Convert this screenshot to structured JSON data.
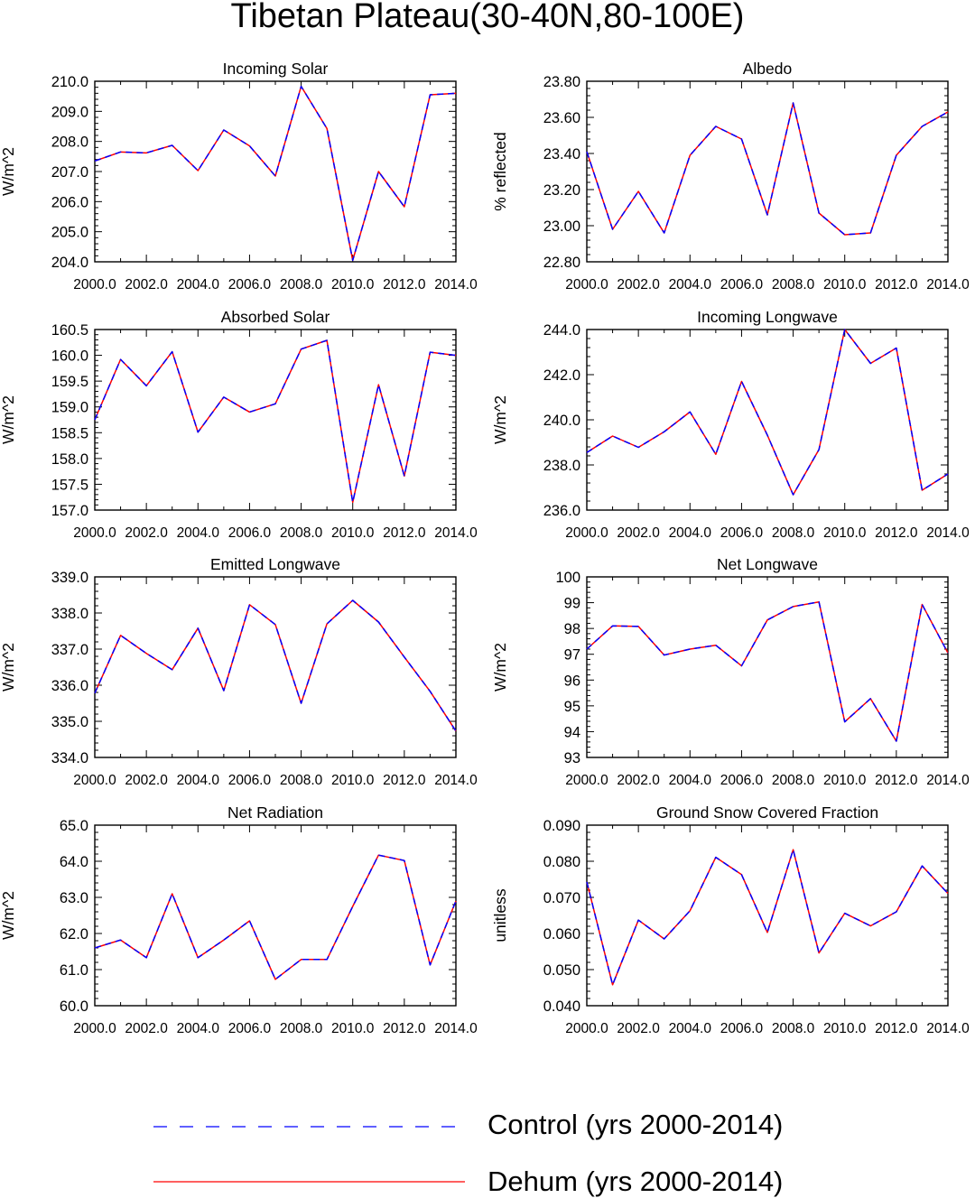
{
  "title": "Tibetan Plateau(30-40N,80-100E)",
  "colors": {
    "control": "#0000ff",
    "dehum": "#ff0000",
    "axis": "#000000"
  },
  "legend": [
    {
      "label": "Control (yrs 2000-2014)",
      "style": "dashed",
      "color": "#0000ff"
    },
    {
      "label": "Dehum (yrs 2000-2014)",
      "style": "solid",
      "color": "#ff0000"
    }
  ],
  "chart_data": [
    {
      "type": "line",
      "title": "Incoming Solar",
      "ylabel": "W/m^2",
      "xlim": [
        2000,
        2014
      ],
      "xticks": [
        "2000.0",
        "2002.0",
        "2004.0",
        "2006.0",
        "2008.0",
        "2010.0",
        "2012.0",
        "2014.0"
      ],
      "ylim": [
        204,
        210
      ],
      "yticks": [
        "204.0",
        "205.0",
        "206.0",
        "207.0",
        "208.0",
        "209.0",
        "210.0"
      ],
      "x": [
        2000,
        2001,
        2002,
        2003,
        2004,
        2005,
        2006,
        2007,
        2008,
        2009,
        2010,
        2011,
        2012,
        2013,
        2014
      ],
      "series": [
        {
          "name": "Control (yrs 2000-2014)",
          "values": [
            207.35,
            207.65,
            207.62,
            207.87,
            207.03,
            208.38,
            207.85,
            206.85,
            209.83,
            208.43,
            204.05,
            207.0,
            205.83,
            209.55,
            209.6
          ]
        },
        {
          "name": "Dehum (yrs 2000-2014)",
          "values": [
            207.35,
            207.65,
            207.62,
            207.87,
            207.03,
            208.38,
            207.85,
            206.85,
            209.83,
            208.43,
            204.05,
            207.0,
            205.83,
            209.55,
            209.6
          ]
        }
      ]
    },
    {
      "type": "line",
      "title": "Albedo",
      "ylabel": "% reflected",
      "xlim": [
        2000,
        2014
      ],
      "xticks": [
        "2000.0",
        "2002.0",
        "2004.0",
        "2006.0",
        "2008.0",
        "2010.0",
        "2012.0",
        "2014.0"
      ],
      "ylim": [
        22.8,
        23.8
      ],
      "yticks": [
        "22.80",
        "23.00",
        "23.20",
        "23.40",
        "23.60",
        "23.80"
      ],
      "x": [
        2000,
        2001,
        2002,
        2003,
        2004,
        2005,
        2006,
        2007,
        2008,
        2009,
        2010,
        2011,
        2012,
        2013,
        2014
      ],
      "series": [
        {
          "name": "Control (yrs 2000-2014)",
          "values": [
            23.41,
            22.98,
            23.19,
            22.96,
            23.39,
            23.55,
            23.48,
            23.06,
            23.68,
            23.07,
            22.95,
            22.96,
            23.39,
            23.55,
            23.63
          ]
        },
        {
          "name": "Dehum (yrs 2000-2014)",
          "values": [
            23.41,
            22.98,
            23.19,
            22.96,
            23.39,
            23.55,
            23.48,
            23.06,
            23.68,
            23.07,
            22.95,
            22.96,
            23.39,
            23.55,
            23.63
          ]
        }
      ]
    },
    {
      "type": "line",
      "title": "Absorbed Solar",
      "ylabel": "W/m^2",
      "xlim": [
        2000,
        2014
      ],
      "xticks": [
        "2000.0",
        "2002.0",
        "2004.0",
        "2006.0",
        "2008.0",
        "2010.0",
        "2012.0",
        "2014.0"
      ],
      "ylim": [
        157,
        160.5
      ],
      "yticks": [
        "157.0",
        "157.5",
        "158.0",
        "158.5",
        "159.0",
        "159.5",
        "160.0",
        "160.5"
      ],
      "x": [
        2000,
        2001,
        2002,
        2003,
        2004,
        2005,
        2006,
        2007,
        2008,
        2009,
        2010,
        2011,
        2012,
        2013,
        2014
      ],
      "series": [
        {
          "name": "Control (yrs 2000-2014)",
          "values": [
            158.75,
            159.92,
            159.41,
            160.07,
            158.51,
            159.19,
            158.9,
            159.06,
            160.12,
            160.29,
            157.15,
            159.43,
            157.66,
            160.06,
            160.0
          ]
        },
        {
          "name": "Dehum (yrs 2000-2014)",
          "values": [
            158.75,
            159.92,
            159.41,
            160.07,
            158.51,
            159.19,
            158.9,
            159.06,
            160.12,
            160.29,
            157.15,
            159.43,
            157.66,
            160.06,
            160.0
          ]
        }
      ]
    },
    {
      "type": "line",
      "title": "Incoming Longwave",
      "ylabel": "W/m^2",
      "xlim": [
        2000,
        2014
      ],
      "xticks": [
        "2000.0",
        "2002.0",
        "2004.0",
        "2006.0",
        "2008.0",
        "2010.0",
        "2012.0",
        "2014.0"
      ],
      "ylim": [
        236,
        244
      ],
      "yticks": [
        "236.0",
        "238.0",
        "240.0",
        "242.0",
        "244.0"
      ],
      "x": [
        2000,
        2001,
        2002,
        2003,
        2004,
        2005,
        2006,
        2007,
        2008,
        2009,
        2010,
        2011,
        2012,
        2013,
        2014
      ],
      "series": [
        {
          "name": "Control (yrs 2000-2014)",
          "values": [
            238.55,
            239.28,
            238.78,
            239.47,
            240.35,
            238.47,
            241.7,
            239.32,
            236.68,
            238.68,
            244.0,
            242.5,
            243.18,
            236.88,
            237.6
          ]
        },
        {
          "name": "Dehum (yrs 2000-2014)",
          "values": [
            238.55,
            239.28,
            238.78,
            239.47,
            240.35,
            238.47,
            241.7,
            239.32,
            236.68,
            238.68,
            244.0,
            242.5,
            243.18,
            236.88,
            237.6
          ]
        }
      ]
    },
    {
      "type": "line",
      "title": "Emitted Longwave",
      "ylabel": "W/m^2",
      "xlim": [
        2000,
        2014
      ],
      "xticks": [
        "2000.0",
        "2002.0",
        "2004.0",
        "2006.0",
        "2008.0",
        "2010.0",
        "2012.0",
        "2014.0"
      ],
      "ylim": [
        334,
        339
      ],
      "yticks": [
        "334.0",
        "335.0",
        "336.0",
        "337.0",
        "338.0",
        "339.0"
      ],
      "x": [
        2000,
        2001,
        2002,
        2003,
        2004,
        2005,
        2006,
        2007,
        2008,
        2009,
        2010,
        2011,
        2012,
        2013,
        2014
      ],
      "series": [
        {
          "name": "Control (yrs 2000-2014)",
          "values": [
            335.78,
            337.38,
            336.88,
            336.43,
            337.58,
            335.85,
            338.23,
            337.68,
            335.5,
            337.7,
            338.35,
            337.75,
            336.78,
            335.83,
            334.73
          ]
        },
        {
          "name": "Dehum (yrs 2000-2014)",
          "values": [
            335.78,
            337.38,
            336.88,
            336.43,
            337.58,
            335.85,
            338.23,
            337.68,
            335.5,
            337.7,
            338.35,
            337.75,
            336.78,
            335.83,
            334.73
          ]
        }
      ]
    },
    {
      "type": "line",
      "title": "Net Longwave",
      "ylabel": "W/m^2",
      "xlim": [
        2000,
        2014
      ],
      "xticks": [
        "2000.0",
        "2002.0",
        "2004.0",
        "2006.0",
        "2008.0",
        "2010.0",
        "2012.0",
        "2014.0"
      ],
      "ylim": [
        93,
        100
      ],
      "yticks": [
        "93",
        "94",
        "95",
        "96",
        "97",
        "98",
        "99",
        "100"
      ],
      "x": [
        2000,
        2001,
        2002,
        2003,
        2004,
        2005,
        2006,
        2007,
        2008,
        2009,
        2010,
        2011,
        2012,
        2013,
        2014
      ],
      "series": [
        {
          "name": "Control (yrs 2000-2014)",
          "values": [
            97.2,
            98.1,
            98.08,
            96.97,
            97.2,
            97.35,
            96.55,
            98.33,
            98.85,
            99.03,
            94.38,
            95.28,
            93.63,
            98.93,
            97.05
          ]
        },
        {
          "name": "Dehum (yrs 2000-2014)",
          "values": [
            97.2,
            98.1,
            98.08,
            96.97,
            97.2,
            97.35,
            96.55,
            98.33,
            98.85,
            99.03,
            94.38,
            95.28,
            93.63,
            98.93,
            97.05
          ]
        }
      ]
    },
    {
      "type": "line",
      "title": "Net Radiation",
      "ylabel": "W/m^2",
      "xlim": [
        2000,
        2014
      ],
      "xticks": [
        "2000.0",
        "2002.0",
        "2004.0",
        "2006.0",
        "2008.0",
        "2010.0",
        "2012.0",
        "2014.0"
      ],
      "ylim": [
        60,
        65
      ],
      "yticks": [
        "60.0",
        "61.0",
        "62.0",
        "63.0",
        "64.0",
        "65.0"
      ],
      "x": [
        2000,
        2001,
        2002,
        2003,
        2004,
        2005,
        2006,
        2007,
        2008,
        2009,
        2010,
        2011,
        2012,
        2013,
        2014
      ],
      "series": [
        {
          "name": "Control (yrs 2000-2014)",
          "values": [
            61.6,
            61.82,
            61.33,
            63.1,
            61.33,
            61.82,
            62.35,
            60.73,
            61.28,
            61.28,
            62.75,
            64.17,
            64.02,
            61.13,
            62.9
          ]
        },
        {
          "name": "Dehum (yrs 2000-2014)",
          "values": [
            61.6,
            61.82,
            61.33,
            63.1,
            61.33,
            61.82,
            62.35,
            60.73,
            61.28,
            61.28,
            62.75,
            64.17,
            64.02,
            61.13,
            62.9
          ]
        }
      ]
    },
    {
      "type": "line",
      "title": "Ground Snow Covered Fraction",
      "ylabel": "unitless",
      "xlim": [
        2000,
        2014
      ],
      "xticks": [
        "2000.0",
        "2002.0",
        "2004.0",
        "2006.0",
        "2008.0",
        "2010.0",
        "2012.0",
        "2014.0"
      ],
      "ylim": [
        0.04,
        0.09
      ],
      "yticks": [
        "0.040",
        "0.050",
        "0.060",
        "0.070",
        "0.080",
        "0.090"
      ],
      "x": [
        2000,
        2001,
        2002,
        2003,
        2004,
        2005,
        2006,
        2007,
        2008,
        2009,
        2010,
        2011,
        2012,
        2013,
        2014
      ],
      "series": [
        {
          "name": "Control (yrs 2000-2014)",
          "values": [
            0.0743,
            0.0458,
            0.0637,
            0.0585,
            0.0663,
            0.0811,
            0.0763,
            0.0603,
            0.0832,
            0.0546,
            0.0656,
            0.0621,
            0.066,
            0.0787,
            0.0711
          ]
        },
        {
          "name": "Dehum (yrs 2000-2014)",
          "values": [
            0.0743,
            0.0458,
            0.0637,
            0.0585,
            0.0663,
            0.0811,
            0.0763,
            0.0603,
            0.0832,
            0.0546,
            0.0656,
            0.0621,
            0.066,
            0.0787,
            0.0711
          ]
        }
      ]
    }
  ]
}
